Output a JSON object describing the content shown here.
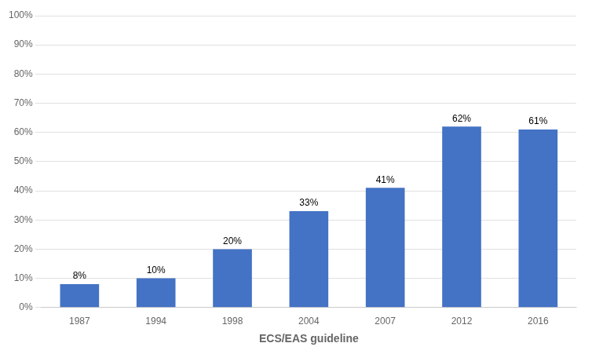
{
  "chart_data": {
    "type": "bar",
    "xlabel": "ECS/EAS guideline",
    "categories": [
      "1987",
      "1994",
      "1998",
      "2004",
      "2007",
      "2012",
      "2016"
    ],
    "values": [
      8,
      10,
      20,
      33,
      41,
      62,
      61
    ],
    "value_labels": [
      "8%",
      "10%",
      "20%",
      "33%",
      "41%",
      "62%",
      "61%"
    ],
    "data_labels": true,
    "color": "#4472C4",
    "ylim": [
      0,
      100
    ],
    "yticks": [
      {
        "value": 0,
        "label": "0%"
      },
      {
        "value": 10,
        "label": "10%"
      },
      {
        "value": 20,
        "label": "20%"
      },
      {
        "value": 30,
        "label": "30%"
      },
      {
        "value": 40,
        "label": "40%"
      },
      {
        "value": 50,
        "label": "50%"
      },
      {
        "value": 60,
        "label": "60%"
      },
      {
        "value": 70,
        "label": "70%"
      },
      {
        "value": 80,
        "label": "80%"
      },
      {
        "value": 90,
        "label": "90%"
      },
      {
        "value": 100,
        "label": "100%"
      }
    ],
    "grid": true
  }
}
